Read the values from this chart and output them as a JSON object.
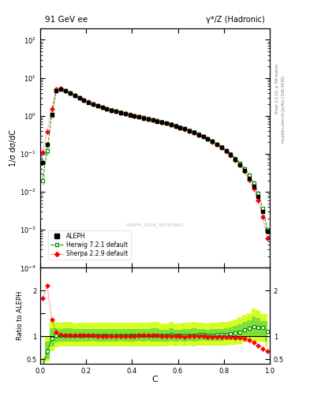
{
  "title_left": "91 GeV ee",
  "title_right": "γ*/Z (Hadronic)",
  "ylabel_main": "1/σ dσ/dC",
  "ylabel_ratio": "Ratio to ALEPH",
  "xlabel": "C",
  "watermark": "ALEPH_2004_S5765862",
  "right_label_top": "Rivet 3.1.10, ≥ 3M events",
  "right_label_bot": "mcplots.cern.ch [arXiv:1306.3436]",
  "ylim_main": [
    0.0001,
    200
  ],
  "ylim_ratio": [
    0.4,
    2.5
  ],
  "ref_color": "#000000",
  "herwig_color": "#008800",
  "sherpa_color": "#ff0000",
  "herwig_fill_color": "#ccff00",
  "herwig_band_color": "#44cc44",
  "aleph_x": [
    0.01,
    0.03,
    0.05,
    0.07,
    0.09,
    0.11,
    0.13,
    0.15,
    0.17,
    0.19,
    0.21,
    0.23,
    0.25,
    0.27,
    0.29,
    0.31,
    0.33,
    0.35,
    0.37,
    0.39,
    0.41,
    0.43,
    0.45,
    0.47,
    0.49,
    0.51,
    0.53,
    0.55,
    0.57,
    0.59,
    0.61,
    0.63,
    0.65,
    0.67,
    0.69,
    0.71,
    0.73,
    0.75,
    0.77,
    0.79,
    0.81,
    0.83,
    0.85,
    0.87,
    0.89,
    0.91,
    0.93,
    0.95,
    0.97,
    0.99
  ],
  "aleph_y": [
    0.06,
    0.18,
    1.1,
    4.5,
    5.0,
    4.5,
    3.9,
    3.35,
    2.9,
    2.55,
    2.25,
    2.0,
    1.82,
    1.65,
    1.52,
    1.4,
    1.3,
    1.2,
    1.12,
    1.05,
    0.98,
    0.92,
    0.87,
    0.82,
    0.77,
    0.72,
    0.68,
    0.63,
    0.58,
    0.54,
    0.49,
    0.45,
    0.4,
    0.36,
    0.32,
    0.28,
    0.245,
    0.21,
    0.175,
    0.145,
    0.118,
    0.093,
    0.071,
    0.052,
    0.036,
    0.023,
    0.014,
    0.0075,
    0.003,
    0.0009
  ],
  "aleph_yerr": [
    0.01,
    0.02,
    0.05,
    0.1,
    0.1,
    0.08,
    0.07,
    0.06,
    0.05,
    0.04,
    0.035,
    0.03,
    0.025,
    0.025,
    0.02,
    0.02,
    0.018,
    0.017,
    0.015,
    0.014,
    0.013,
    0.012,
    0.011,
    0.01,
    0.01,
    0.009,
    0.009,
    0.008,
    0.007,
    0.007,
    0.006,
    0.006,
    0.005,
    0.005,
    0.004,
    0.004,
    0.004,
    0.003,
    0.003,
    0.003,
    0.002,
    0.002,
    0.002,
    0.001,
    0.001,
    0.001,
    0.0008,
    0.0005,
    0.0002,
    0.0001
  ],
  "herwig_y": [
    0.02,
    0.12,
    1.05,
    4.6,
    5.1,
    4.6,
    4.0,
    3.4,
    2.95,
    2.6,
    2.3,
    2.05,
    1.85,
    1.68,
    1.55,
    1.43,
    1.33,
    1.23,
    1.14,
    1.07,
    1.0,
    0.94,
    0.89,
    0.84,
    0.79,
    0.74,
    0.69,
    0.64,
    0.6,
    0.55,
    0.5,
    0.46,
    0.41,
    0.37,
    0.33,
    0.29,
    0.25,
    0.215,
    0.18,
    0.15,
    0.123,
    0.098,
    0.076,
    0.057,
    0.041,
    0.027,
    0.017,
    0.009,
    0.0036,
    0.001
  ],
  "herwig_ylo": [
    0.015,
    0.09,
    0.85,
    3.9,
    4.4,
    3.95,
    3.45,
    2.95,
    2.55,
    2.25,
    2.0,
    1.78,
    1.6,
    1.46,
    1.34,
    1.24,
    1.15,
    1.07,
    0.99,
    0.93,
    0.87,
    0.82,
    0.77,
    0.73,
    0.68,
    0.64,
    0.6,
    0.56,
    0.52,
    0.48,
    0.44,
    0.4,
    0.36,
    0.32,
    0.29,
    0.255,
    0.22,
    0.188,
    0.158,
    0.131,
    0.107,
    0.085,
    0.065,
    0.049,
    0.035,
    0.023,
    0.014,
    0.0075,
    0.003,
    0.0008
  ],
  "herwig_yhi": [
    0.03,
    0.16,
    1.3,
    5.3,
    5.8,
    5.25,
    4.55,
    3.85,
    3.35,
    2.95,
    2.6,
    2.32,
    2.1,
    1.9,
    1.76,
    1.62,
    1.51,
    1.39,
    1.29,
    1.21,
    1.13,
    1.06,
    1.01,
    0.95,
    0.9,
    0.84,
    0.78,
    0.72,
    0.68,
    0.62,
    0.56,
    0.52,
    0.46,
    0.42,
    0.37,
    0.325,
    0.28,
    0.242,
    0.202,
    0.169,
    0.139,
    0.111,
    0.087,
    0.066,
    0.047,
    0.031,
    0.02,
    0.0105,
    0.004,
    0.0012
  ],
  "sherpa_y": [
    0.11,
    0.38,
    1.5,
    4.9,
    5.2,
    4.6,
    4.0,
    3.4,
    2.95,
    2.6,
    2.28,
    2.03,
    1.83,
    1.66,
    1.53,
    1.41,
    1.31,
    1.21,
    1.13,
    1.06,
    0.99,
    0.93,
    0.88,
    0.83,
    0.78,
    0.73,
    0.68,
    0.63,
    0.58,
    0.54,
    0.49,
    0.44,
    0.4,
    0.36,
    0.32,
    0.28,
    0.243,
    0.207,
    0.173,
    0.143,
    0.116,
    0.091,
    0.069,
    0.05,
    0.034,
    0.021,
    0.012,
    0.006,
    0.0022,
    0.0006
  ],
  "sherpa_yerr": [
    0.01,
    0.02,
    0.05,
    0.1,
    0.1,
    0.08,
    0.07,
    0.06,
    0.05,
    0.04,
    0.035,
    0.03,
    0.025,
    0.025,
    0.02,
    0.02,
    0.018,
    0.017,
    0.015,
    0.014,
    0.013,
    0.012,
    0.011,
    0.01,
    0.01,
    0.009,
    0.009,
    0.008,
    0.007,
    0.007,
    0.006,
    0.006,
    0.005,
    0.005,
    0.004,
    0.004,
    0.004,
    0.003,
    0.003,
    0.003,
    0.002,
    0.002,
    0.002,
    0.001,
    0.001,
    0.001,
    0.0008,
    0.0005,
    0.0002,
    0.0001
  ]
}
